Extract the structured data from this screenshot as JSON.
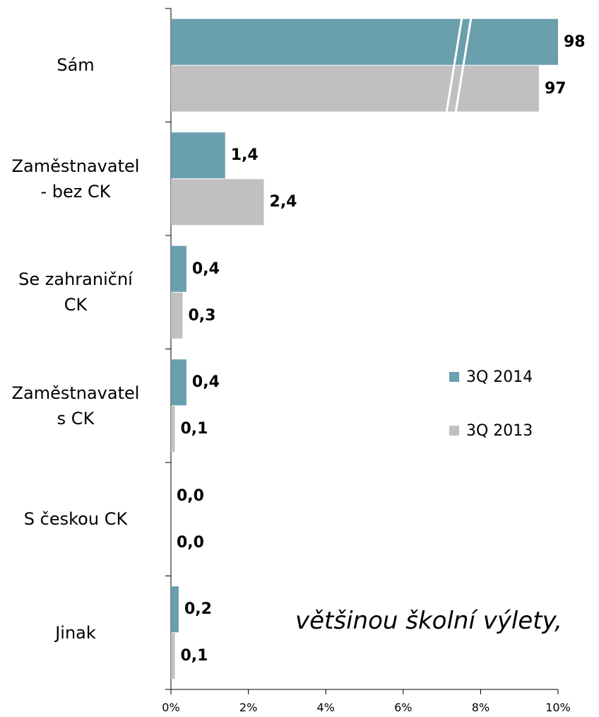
{
  "chart_data": {
    "type": "bar",
    "orientation": "horizontal",
    "categories": [
      "Sám",
      "Zaměstnavatel\n- bez CK",
      "Se zahraniční\nCK",
      "Zaměstnavatel\ns CK",
      "S českou CK",
      "Jinak"
    ],
    "series": [
      {
        "name": "3Q 2014",
        "color": "#6a9fae",
        "values": [
          98,
          1.4,
          0.4,
          0.4,
          0.0,
          0.2
        ],
        "value_labels": [
          "98",
          "1,4",
          "0,4",
          "0,4",
          "0,0",
          "0,2"
        ]
      },
      {
        "name": "3Q 2013",
        "color": "#c0c0c0",
        "values": [
          97,
          2.4,
          0.3,
          0.1,
          0.0,
          0.1
        ],
        "value_labels": [
          "97",
          "2,4",
          "0,3",
          "0,1",
          "0,0",
          "0,1"
        ]
      }
    ],
    "xlim": [
      0,
      10
    ],
    "xticks": [
      {
        "value": 0,
        "label": "0%"
      },
      {
        "value": 2,
        "label": "2%"
      },
      {
        "value": 4,
        "label": "4%"
      },
      {
        "value": 6,
        "label": "6%"
      },
      {
        "value": 8,
        "label": "8%"
      },
      {
        "value": 10,
        "label": "10%"
      }
    ],
    "axis_break": true,
    "legend": "right",
    "annotation": "většinou školní výlety,"
  }
}
